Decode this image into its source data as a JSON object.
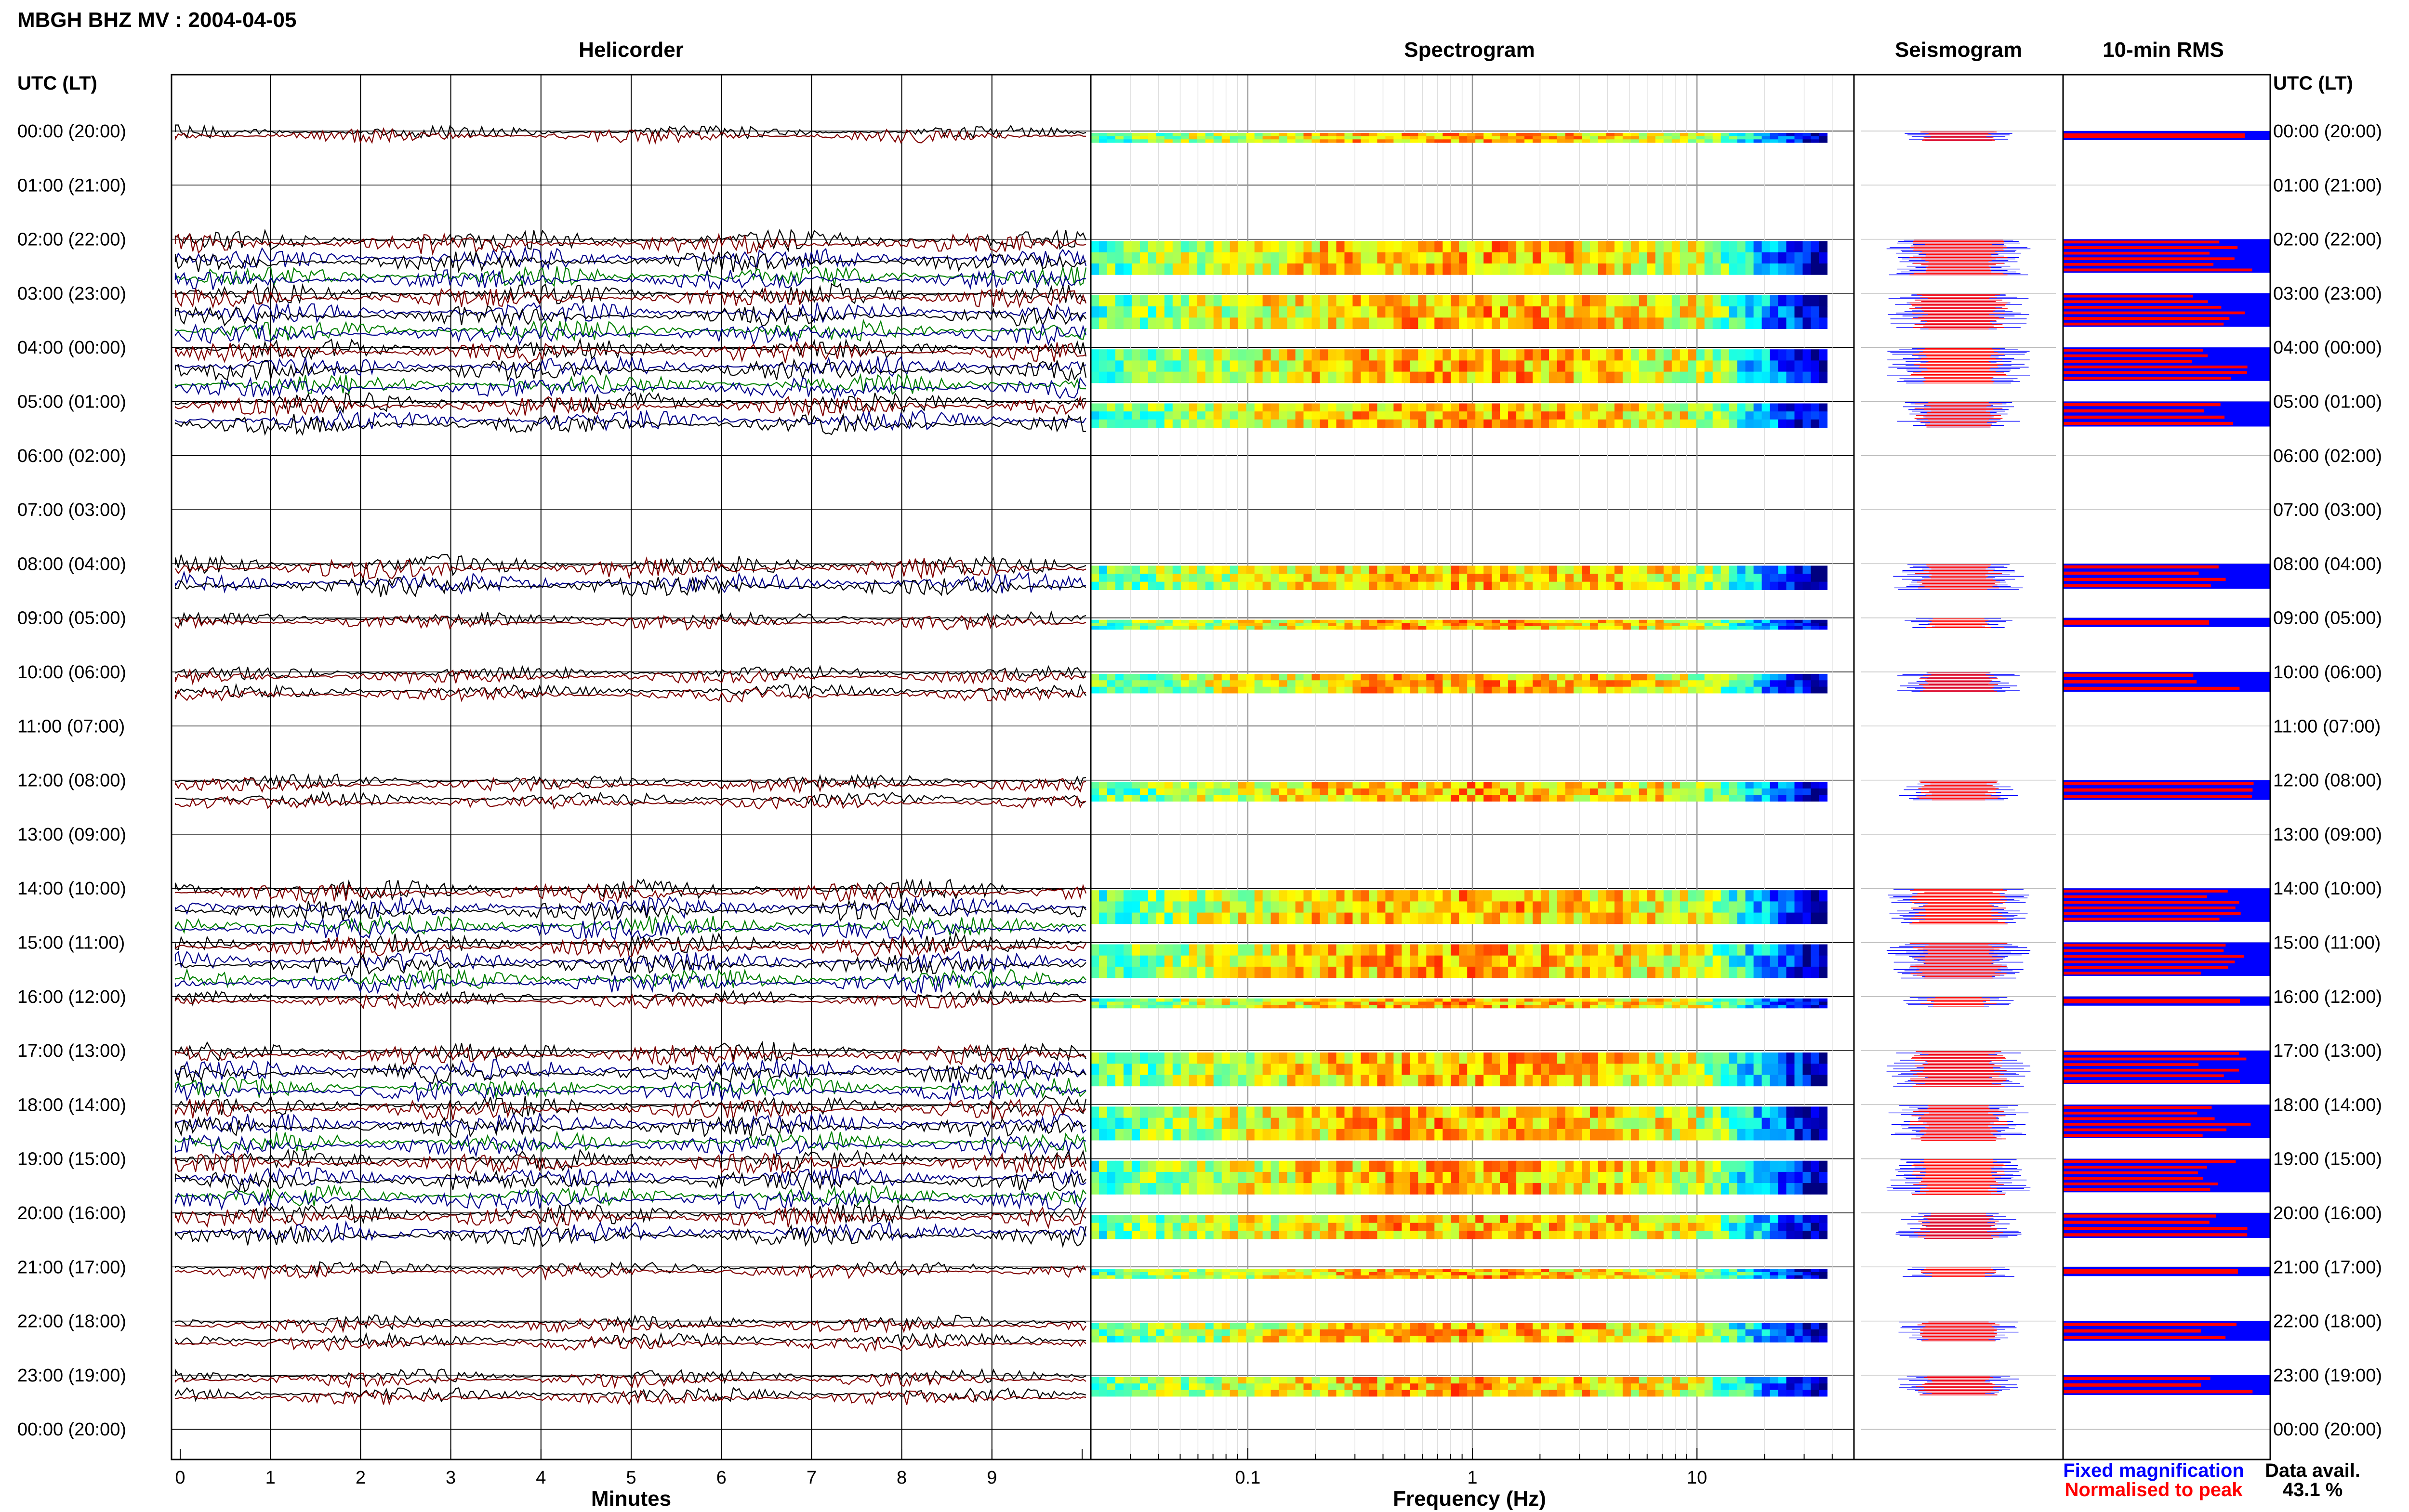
{
  "page_title": "MBGH BHZ MV : 2004-04-05",
  "panels": {
    "helicorder": "Helicorder",
    "spectrogram": "Spectrogram",
    "seismogram": "Seismogram",
    "rms": "10-min RMS"
  },
  "axis_header_left": "UTC (LT)",
  "axis_header_right": "UTC (LT)",
  "time_labels": [
    "00:00 (20:00)",
    "01:00 (21:00)",
    "02:00 (22:00)",
    "03:00 (23:00)",
    "04:00 (00:00)",
    "05:00 (01:00)",
    "06:00 (02:00)",
    "07:00 (03:00)",
    "08:00 (04:00)",
    "09:00 (05:00)",
    "10:00 (06:00)",
    "11:00 (07:00)",
    "12:00 (08:00)",
    "13:00 (09:00)",
    "14:00 (10:00)",
    "15:00 (11:00)",
    "16:00 (12:00)",
    "17:00 (13:00)",
    "18:00 (14:00)",
    "19:00 (15:00)",
    "20:00 (16:00)",
    "21:00 (17:00)",
    "22:00 (18:00)",
    "23:00 (19:00)",
    "00:00 (20:00)"
  ],
  "helicorder_x": {
    "label": "Minutes",
    "ticks": [
      "0",
      "1",
      "2",
      "3",
      "4",
      "5",
      "6",
      "7",
      "8",
      "9"
    ]
  },
  "spectrogram_x": {
    "label": "Frequency (Hz)",
    "ticks": [
      "0.1",
      "1",
      "10"
    ]
  },
  "legend": {
    "fixed": "Fixed magnification",
    "fixed_color": "#0000ff",
    "normalised": "Normalised to peak",
    "normalised_color": "#ff0000"
  },
  "data_avail": {
    "label": "Data avail.",
    "value": "43.1 %"
  },
  "colors": {
    "trace_black": "#000000",
    "trace_red": "#800000",
    "trace_blue": "#00008b",
    "trace_green": "#008000",
    "rms_bg": "#0000ff",
    "rms_bar": "#ff0000"
  },
  "chart_data": {
    "type": "heatmap",
    "hours_with_data": [
      0,
      2,
      3,
      4,
      5,
      8,
      9,
      10,
      12,
      14,
      15,
      16,
      17,
      18,
      19,
      20,
      21,
      22,
      23
    ],
    "segments_per_hour": {
      "0": 1,
      "2": 6,
      "3": 6,
      "4": 6,
      "5": 4,
      "8": 4,
      "9": 1,
      "10": 3,
      "12": 3,
      "14": 6,
      "15": 6,
      "16": 1,
      "17": 6,
      "18": 6,
      "19": 6,
      "20": 4,
      "21": 1,
      "22": 3,
      "23": 3
    },
    "helicorder_minutes_range": [
      0,
      10
    ],
    "frequency_range_hz": [
      0.02,
      50
    ],
    "frequency_scale": "log",
    "data_availability_percent": 43.1
  }
}
